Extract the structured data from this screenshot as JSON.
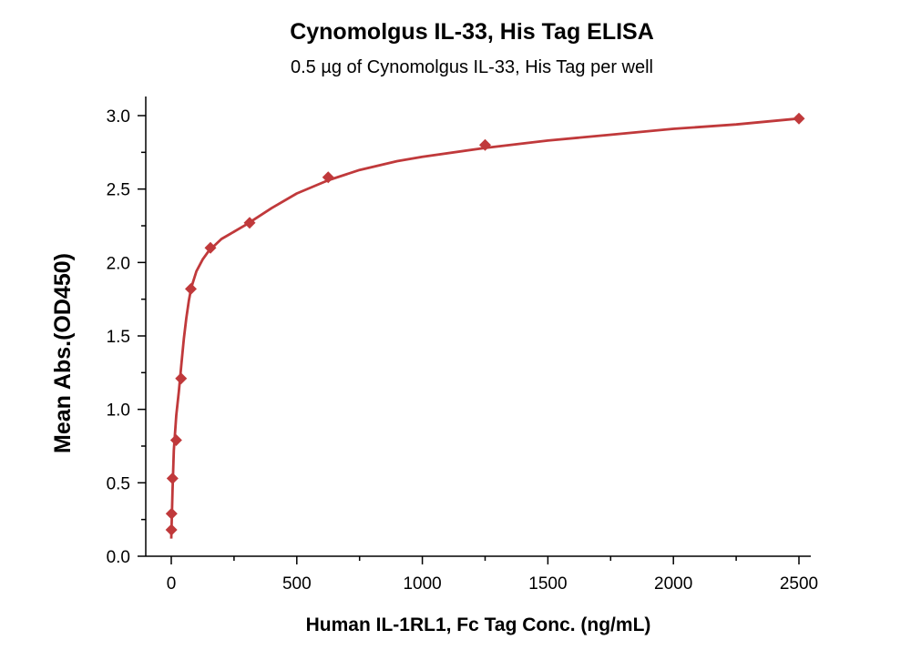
{
  "chart_data": {
    "type": "line",
    "title": "Cynomolgus IL-33, His Tag ELISA",
    "subtitle": "0.5 µg of Cynomolgus IL-33, His Tag per well",
    "xlabel": "Human IL-1RL1, Fc Tag Conc. (ng/mL)",
    "ylabel": "Mean Abs.(OD450)",
    "xlim": [
      -100,
      2550
    ],
    "ylim": [
      0,
      3.1
    ],
    "x_ticks": [
      0,
      500,
      1000,
      1500,
      2000,
      2500
    ],
    "x_tick_labels": [
      "0",
      "500",
      "1000",
      "1500",
      "2000",
      "2500"
    ],
    "y_ticks": [
      0.0,
      0.5,
      1.0,
      1.5,
      2.0,
      2.5,
      3.0
    ],
    "y_tick_labels": [
      "0.0",
      "0.5",
      "1.0",
      "1.5",
      "2.0",
      "2.5",
      "3.0"
    ],
    "grid": false,
    "marker": "diamond",
    "series": [
      {
        "color": "#c0393b",
        "points": [
          {
            "x": 0.6,
            "y": 0.18
          },
          {
            "x": 1.2,
            "y": 0.29
          },
          {
            "x": 4.9,
            "y": 0.53
          },
          {
            "x": 19.5,
            "y": 0.79
          },
          {
            "x": 39,
            "y": 1.21
          },
          {
            "x": 78,
            "y": 1.82
          },
          {
            "x": 156,
            "y": 2.1
          },
          {
            "x": 312,
            "y": 2.27
          },
          {
            "x": 625,
            "y": 2.58
          },
          {
            "x": 1250,
            "y": 2.8
          },
          {
            "x": 2500,
            "y": 2.98
          }
        ],
        "curve": [
          [
            0,
            0.12
          ],
          [
            5,
            0.45
          ],
          [
            10,
            0.72
          ],
          [
            20,
            0.96
          ],
          [
            30,
            1.12
          ],
          [
            40,
            1.3
          ],
          [
            50,
            1.48
          ],
          [
            60,
            1.62
          ],
          [
            70,
            1.74
          ],
          [
            80,
            1.83
          ],
          [
            100,
            1.94
          ],
          [
            125,
            2.02
          ],
          [
            150,
            2.08
          ],
          [
            175,
            2.12
          ],
          [
            200,
            2.16
          ],
          [
            250,
            2.21
          ],
          [
            300,
            2.26
          ],
          [
            400,
            2.37
          ],
          [
            500,
            2.47
          ],
          [
            625,
            2.56
          ],
          [
            750,
            2.63
          ],
          [
            900,
            2.69
          ],
          [
            1000,
            2.72
          ],
          [
            1250,
            2.78
          ],
          [
            1500,
            2.83
          ],
          [
            1750,
            2.87
          ],
          [
            2000,
            2.91
          ],
          [
            2250,
            2.94
          ],
          [
            2500,
            2.98
          ]
        ]
      }
    ]
  }
}
